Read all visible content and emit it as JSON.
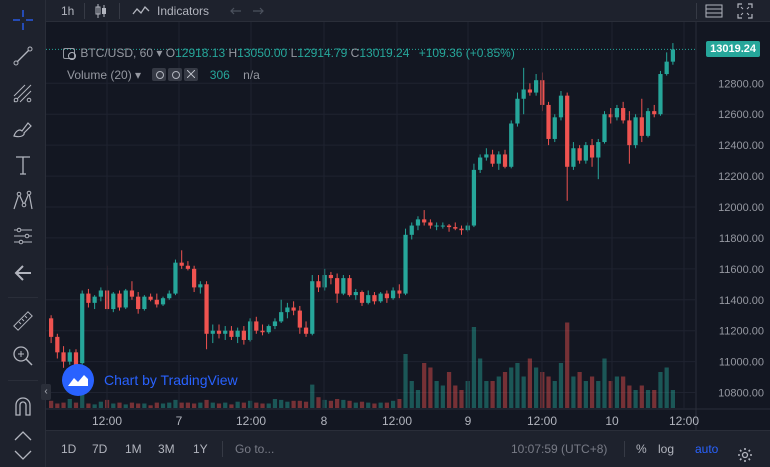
{
  "toolbar": {
    "interval": "1h",
    "indicators_label": "Indicators"
  },
  "legend": {
    "symbol": "BTC/USD, 60",
    "open_key": "O",
    "open": "12918.13",
    "high_key": "H",
    "high": "13050.00",
    "low_key": "L",
    "low": "12914.79",
    "close_key": "C",
    "close": "13019.24",
    "change": "+109.36 (+0.85%)",
    "volume_label": "Volume (20)",
    "volume_value": "306",
    "volume_na": "n/a"
  },
  "price_tag": "13019.24",
  "watermark": "Chart by TradingView",
  "bottombar": {
    "ranges": [
      "1D",
      "7D",
      "1M",
      "3M",
      "1Y"
    ],
    "goto": "Go to...",
    "clock": "10:07:59 (UTC+8)",
    "percent": "%",
    "log": "log",
    "auto": "auto"
  },
  "colors": {
    "up": "#26a69a",
    "down": "#ef5350",
    "accent": "#2962ff",
    "background": "#131722"
  },
  "chart_data": {
    "type": "candlestick",
    "interval": "60",
    "price_axis_labels": [
      "12800.00",
      "12600.00",
      "12400.00",
      "12200.00",
      "12000.00",
      "11800.00",
      "11600.00",
      "11400.00",
      "11200.00",
      "11000.00",
      "10800.00"
    ],
    "price_ticks": [
      12800,
      12600,
      12400,
      12200,
      12000,
      11800,
      11600,
      11400,
      11200,
      11000,
      10800
    ],
    "time_axis_labels": [
      "12:00",
      "7",
      "12:00",
      "8",
      "12:00",
      "9",
      "12:00",
      "10",
      "12:00"
    ],
    "ylim": [
      10700,
      13080
    ],
    "last_close": 13019.24,
    "candles": [
      [
        11280,
        11300,
        11120,
        11160
      ],
      [
        11160,
        11180,
        11020,
        11060
      ],
      [
        11060,
        11100,
        10960,
        11000
      ],
      [
        11000,
        11080,
        10980,
        11060
      ],
      [
        11060,
        11080,
        10950,
        10980
      ],
      [
        10990,
        11460,
        10980,
        11440
      ],
      [
        11440,
        11470,
        11350,
        11380
      ],
      [
        11380,
        11430,
        11340,
        11420
      ],
      [
        11420,
        11480,
        11390,
        11460
      ],
      [
        11460,
        11620,
        11330,
        11340
      ],
      [
        11340,
        11450,
        11320,
        11440
      ],
      [
        11440,
        11460,
        11330,
        11350
      ],
      [
        11350,
        11470,
        11340,
        11460
      ],
      [
        11460,
        11520,
        11400,
        11420
      ],
      [
        11420,
        11450,
        11310,
        11340
      ],
      [
        11340,
        11430,
        11330,
        11420
      ],
      [
        11420,
        11440,
        11390,
        11400
      ],
      [
        11400,
        11440,
        11350,
        11370
      ],
      [
        11370,
        11420,
        11360,
        11410
      ],
      [
        11410,
        11460,
        11400,
        11440
      ],
      [
        11440,
        11660,
        11430,
        11640
      ],
      [
        11640,
        11720,
        11600,
        11620
      ],
      [
        11620,
        11650,
        11590,
        11600
      ],
      [
        11600,
        11620,
        11450,
        11480
      ],
      [
        11480,
        11520,
        11440,
        11500
      ],
      [
        11500,
        11520,
        11080,
        11180
      ],
      [
        11180,
        11240,
        11120,
        11200
      ],
      [
        11200,
        11240,
        11150,
        11180
      ],
      [
        11180,
        11230,
        11140,
        11200
      ],
      [
        11200,
        11230,
        11140,
        11160
      ],
      [
        11160,
        11220,
        11120,
        11200
      ],
      [
        11200,
        11230,
        11110,
        11140
      ],
      [
        11140,
        11280,
        11130,
        11260
      ],
      [
        11260,
        11290,
        11180,
        11200
      ],
      [
        11200,
        11240,
        11170,
        11190
      ],
      [
        11190,
        11240,
        11180,
        11230
      ],
      [
        11230,
        11280,
        11210,
        11260
      ],
      [
        11260,
        11400,
        11250,
        11320
      ],
      [
        11320,
        11380,
        11280,
        11350
      ],
      [
        11350,
        11390,
        11300,
        11330
      ],
      [
        11330,
        11360,
        11180,
        11220
      ],
      [
        11220,
        11260,
        11160,
        11180
      ],
      [
        11180,
        11560,
        11170,
        11520
      ],
      [
        11520,
        11560,
        11450,
        11480
      ],
      [
        11480,
        11600,
        11460,
        11560
      ],
      [
        11560,
        11580,
        11500,
        11540
      ],
      [
        11540,
        11570,
        11380,
        11440
      ],
      [
        11440,
        11560,
        11430,
        11540
      ],
      [
        11540,
        11560,
        11420,
        11430
      ],
      [
        11430,
        11470,
        11400,
        11450
      ],
      [
        11450,
        11460,
        11360,
        11380
      ],
      [
        11380,
        11460,
        11370,
        11430
      ],
      [
        11430,
        11450,
        11370,
        11390
      ],
      [
        11390,
        11450,
        11380,
        11440
      ],
      [
        11440,
        11460,
        11380,
        11410
      ],
      [
        11410,
        11480,
        11400,
        11460
      ],
      [
        11460,
        11500,
        11410,
        11440
      ],
      [
        11440,
        11860,
        11430,
        11820
      ],
      [
        11820,
        11900,
        11790,
        11880
      ],
      [
        11880,
        11940,
        11850,
        11920
      ],
      [
        11920,
        11980,
        11880,
        11900
      ],
      [
        11900,
        11920,
        11860,
        11880
      ],
      [
        11880,
        11900,
        11850,
        11880
      ],
      [
        11880,
        11900,
        11860,
        11880
      ],
      [
        11880,
        11890,
        11840,
        11870
      ],
      [
        11870,
        11900,
        11850,
        11860
      ],
      [
        11860,
        11880,
        11820,
        11850
      ],
      [
        11850,
        11900,
        11840,
        11880
      ],
      [
        11880,
        12280,
        11870,
        12240
      ],
      [
        12240,
        12340,
        12220,
        12320
      ],
      [
        12320,
        12380,
        12300,
        12340
      ],
      [
        12340,
        12370,
        12260,
        12280
      ],
      [
        12280,
        12360,
        12240,
        12340
      ],
      [
        12340,
        12370,
        12250,
        12260
      ],
      [
        12260,
        12560,
        12250,
        12540
      ],
      [
        12540,
        12740,
        12520,
        12700
      ],
      [
        12700,
        12900,
        12600,
        12760
      ],
      [
        12760,
        12800,
        12720,
        12740
      ],
      [
        12740,
        12860,
        12720,
        12820
      ],
      [
        12820,
        12870,
        12620,
        12660
      ],
      [
        12660,
        12680,
        12400,
        12440
      ],
      [
        12440,
        12600,
        12420,
        12580
      ],
      [
        12580,
        12750,
        12560,
        12720
      ],
      [
        12720,
        12740,
        12040,
        12260
      ],
      [
        12260,
        12420,
        12240,
        12380
      ],
      [
        12380,
        12400,
        12280,
        12300
      ],
      [
        12300,
        12420,
        12280,
        12400
      ],
      [
        12400,
        12440,
        12260,
        12320
      ],
      [
        12320,
        12440,
        12180,
        12420
      ],
      [
        12420,
        12620,
        12410,
        12600
      ],
      [
        12600,
        12640,
        12540,
        12580
      ],
      [
        12580,
        12660,
        12560,
        12640
      ],
      [
        12640,
        12680,
        12540,
        12560
      ],
      [
        12560,
        12620,
        12280,
        12400
      ],
      [
        12400,
        12600,
        12380,
        12580
      ],
      [
        12580,
        12700,
        12420,
        12460
      ],
      [
        12460,
        12640,
        12450,
        12620
      ],
      [
        12620,
        12660,
        12580,
        12600
      ],
      [
        12600,
        12880,
        12590,
        12860
      ],
      [
        12860,
        13000,
        12850,
        12940
      ],
      [
        12940,
        13060,
        12920,
        13019
      ]
    ],
    "volume_heights_relative": [
      0.08,
      0.05,
      0.06,
      0.1,
      0.06,
      0.16,
      0.05,
      0.04,
      0.07,
      0.09,
      0.05,
      0.06,
      0.04,
      0.06,
      0.05,
      0.05,
      0.03,
      0.06,
      0.05,
      0.06,
      0.09,
      0.06,
      0.06,
      0.05,
      0.06,
      0.09,
      0.06,
      0.05,
      0.06,
      0.04,
      0.07,
      0.06,
      0.08,
      0.06,
      0.05,
      0.05,
      0.1,
      0.09,
      0.07,
      0.08,
      0.08,
      0.07,
      0.26,
      0.12,
      0.09,
      0.08,
      0.1,
      0.09,
      0.08,
      0.06,
      0.07,
      0.06,
      0.05,
      0.06,
      0.06,
      0.08,
      0.1,
      0.6,
      0.3,
      0.2,
      0.5,
      0.45,
      0.3,
      0.25,
      0.4,
      0.25,
      0.2,
      0.3,
      0.9,
      0.55,
      0.3,
      0.3,
      0.35,
      0.4,
      0.45,
      0.5,
      0.35,
      0.55,
      0.45,
      0.4,
      0.35,
      0.3,
      0.5,
      0.95,
      0.35,
      0.4,
      0.3,
      0.35,
      0.3,
      0.55,
      0.3,
      0.35,
      0.35,
      0.25,
      0.2,
      0.25,
      0.2,
      0.2,
      0.4,
      0.45,
      0.2
    ],
    "grid": true
  }
}
